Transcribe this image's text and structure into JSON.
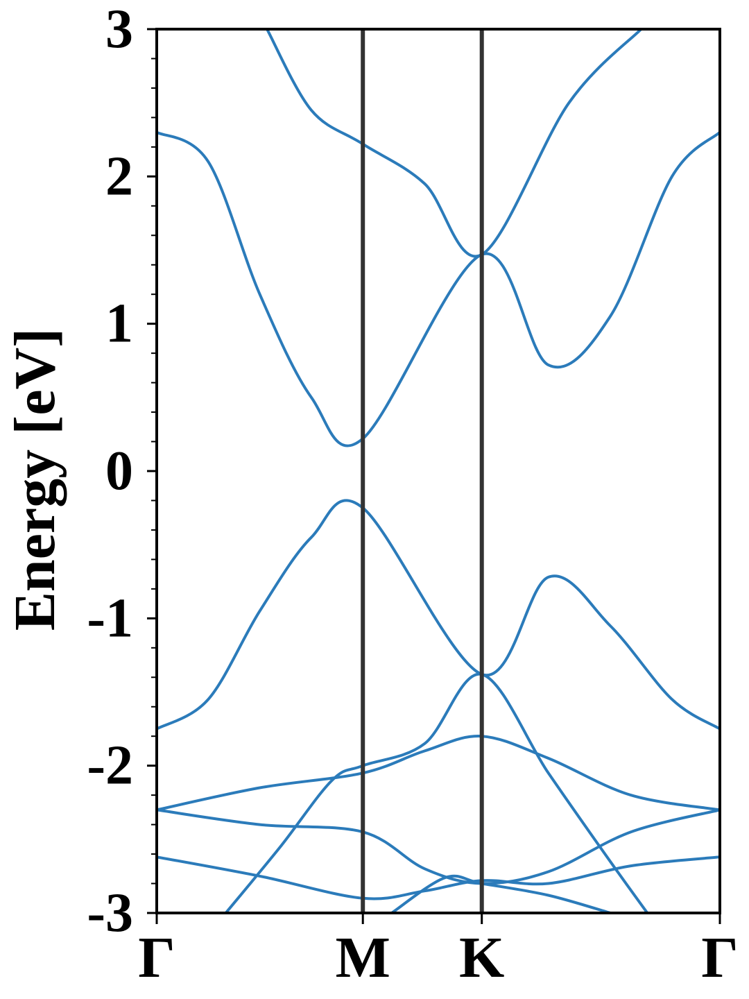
{
  "chart_data": {
    "type": "line",
    "title": "",
    "xlabel": "",
    "ylabel": "Energy [eV]",
    "ylim": [
      -3,
      3
    ],
    "y_ticks": [
      "3",
      "2",
      "1",
      "0",
      "-1",
      "-2",
      "-3"
    ],
    "y_tick_values": [
      3,
      2,
      1,
      0,
      -1,
      -2,
      -3
    ],
    "y_minor_step": 0.2,
    "k_path": [
      {
        "label": "Γ",
        "k": 0
      },
      {
        "label": "M",
        "k": 1
      },
      {
        "label": "K",
        "k": 1.577
      },
      {
        "label": "Γ",
        "k": 2.732
      }
    ],
    "grid": false,
    "line_color": "#2b7bba",
    "marker_line_color": "#333333",
    "series": [
      {
        "x": [
          0,
          0.25,
          0.5,
          0.75,
          1,
          1.577,
          1.9,
          2.2,
          2.5,
          2.732
        ],
        "y": [
          2.3,
          2.1,
          1.2,
          0.5,
          0.22,
          1.47,
          0.72,
          1.05,
          2.0,
          2.3
        ]
      },
      {
        "x": [
          0,
          0.25,
          0.5,
          0.75,
          1,
          1.577,
          1.9,
          2.2,
          2.5,
          2.732
        ],
        "y": [
          -1.75,
          -1.55,
          -0.95,
          -0.45,
          -0.25,
          -1.38,
          -0.72,
          -1.05,
          -1.55,
          -1.75
        ]
      },
      {
        "x": [
          0.535,
          0.75,
          1,
          1.3,
          1.577,
          2.0,
          2.35
        ],
        "y": [
          3.0,
          2.45,
          2.22,
          1.95,
          1.47,
          2.5,
          3.0
        ]
      },
      {
        "x": [
          0.335,
          0.6,
          0.85,
          1,
          1.3,
          1.577,
          1.9,
          2.2,
          2.38
        ],
        "y": [
          -3.0,
          -2.55,
          -2.1,
          -2.0,
          -1.85,
          -1.38,
          -2.05,
          -2.65,
          -3.0
        ]
      },
      {
        "x": [
          0,
          0.5,
          1,
          1.3,
          1.577,
          1.9,
          2.3,
          2.732
        ],
        "y": [
          -2.3,
          -2.15,
          -2.05,
          -1.9,
          -1.8,
          -1.95,
          -2.2,
          -2.3
        ]
      },
      {
        "x": [
          0,
          0.5,
          1,
          1.3,
          1.577,
          1.9,
          2.3,
          2.732
        ],
        "y": [
          -2.3,
          -2.4,
          -2.45,
          -2.7,
          -2.8,
          -2.72,
          -2.45,
          -2.3
        ]
      },
      {
        "x": [
          0,
          0.5,
          1,
          1.3,
          1.577,
          1.9,
          2.3,
          2.732
        ],
        "y": [
          -2.62,
          -2.75,
          -2.9,
          -2.85,
          -2.78,
          -2.8,
          -2.68,
          -2.62
        ]
      },
      {
        "x": [
          1.14,
          1.4,
          1.577,
          1.9,
          2.2
        ],
        "y": [
          -3.0,
          -2.76,
          -2.8,
          -2.88,
          -3.0
        ]
      }
    ]
  }
}
